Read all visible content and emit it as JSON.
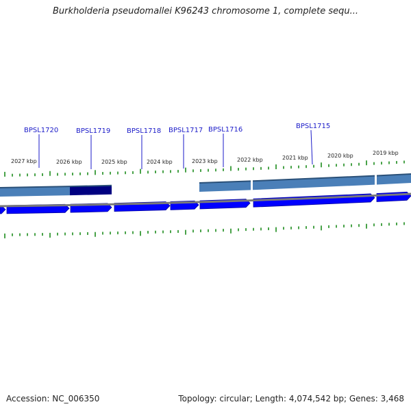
{
  "title": "Burkholderia pseudomallei K96243 chromosome 1, complete sequ...",
  "accession": "Accession: NC_006350",
  "topology": "Topology: circular; Length: 4,074,542 bp; Genes: 3,468",
  "colors": {
    "gene_label": "#1a1ac8",
    "gene_arrow": "#0000ff",
    "gene_arrow_shadow": "#0000a0",
    "region_band": "#4a7fb8",
    "region_band_selected": "#000080",
    "backbone": "#7a7a7a",
    "tick": "#1a8a1a"
  },
  "kbp_labels": [
    "2027 kbp",
    "2026 kbp",
    "2025 kbp",
    "2024 kbp",
    "2023 kbp",
    "2022 kbp",
    "2021 kbp",
    "2020 kbp",
    "2019 kbp"
  ],
  "gene_labels": [
    "BPSL1720",
    "BPSL1719",
    "BPSL1718",
    "BPSL1717",
    "BPSL1716",
    "BPSL1715"
  ]
}
